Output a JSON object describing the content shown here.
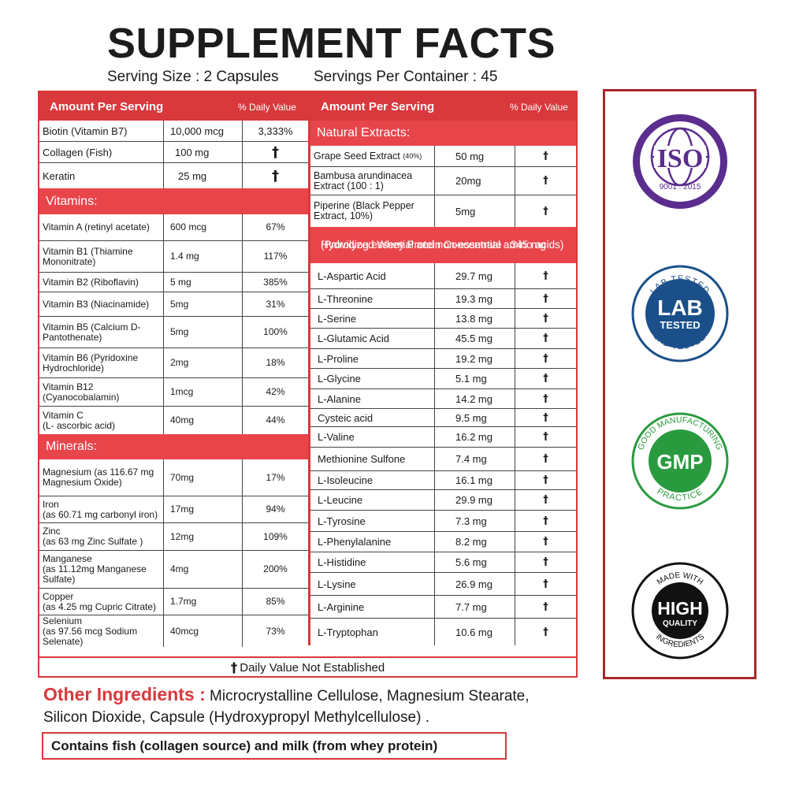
{
  "title": "SUPPLEMENT FACTS",
  "serving_size": "Serving Size : 2 Capsules",
  "servings_per_container": "Servings Per Container : 45",
  "header": {
    "amount": "Amount Per Serving",
    "dv": "% Daily Value"
  },
  "dagger": "†",
  "top_items": [
    {
      "name": "Biotin (Vitamin B7)",
      "amount": "10,000 mcg",
      "dv": "3,333%"
    },
    {
      "name": "Collagen (Fish)",
      "amount": "100 mg",
      "dv": "†"
    },
    {
      "name": "Keratin",
      "amount": "25 mg",
      "dv": "†"
    }
  ],
  "vitamins": {
    "label": "Vitamins:",
    "items": [
      {
        "name": "Vitamin A (retinyl acetate)",
        "amount": "600 mcg",
        "dv": "67%"
      },
      {
        "name": "Vitamin B1 (Thiamine",
        "name2": "Mononitrate)",
        "amount": "1.4 mg",
        "dv": "117%"
      },
      {
        "name": "Vitamin B2 (Riboflavin)",
        "amount": "5 mg",
        "dv": "385%"
      },
      {
        "name": "Vitamin B3 (Niacinamide)",
        "amount": "5mg",
        "dv": "31%"
      },
      {
        "name": "Vitamin B5 (Calcium D-",
        "name2": "Pantothenate)",
        "amount": "5mg",
        "dv": "100%"
      },
      {
        "name": "Vitamin B6 (Pyridoxine",
        "name2": "Hydrochloride)",
        "amount": "2mg",
        "dv": "18%"
      },
      {
        "name": "Vitamin B12",
        "name2": "(Cyanocobalamin)",
        "amount": "1mcg",
        "dv": "42%"
      },
      {
        "name": "Vitamin C",
        "name2": "(L- ascorbic acid)",
        "amount": "40mg",
        "dv": "44%"
      }
    ]
  },
  "minerals": {
    "label": "Minerals:",
    "items": [
      {
        "name": "Magnesium (as 116.67 mg",
        "name2": "Magnesium Oxide)",
        "amount": "70mg",
        "dv": "17%"
      },
      {
        "name": "Iron",
        "name2": "(as 60.71 mg carbonyl iron)",
        "amount": "17mg",
        "dv": "94%"
      },
      {
        "name": "Zinc",
        "name2": "(as 63 mg Zinc Sulfate )",
        "amount": "12mg",
        "dv": "109%"
      },
      {
        "name": "Manganese",
        "name2": "(as 11.12mg Manganese",
        "name3": "Sulfate)",
        "amount": "4mg",
        "dv": "200%"
      },
      {
        "name": "Copper",
        "name2": "(as 4.25 mg Cupric Citrate)",
        "amount": "1.7mg",
        "dv": "85%"
      },
      {
        "name": "Selenium",
        "name2": "(as 97.56 mcg Sodium",
        "name3": "Selenate)",
        "amount": "40mcg",
        "dv": "73%"
      }
    ]
  },
  "natural_extracts": {
    "label": "Natural Extracts:",
    "items": [
      {
        "name": "Grape Seed Extract",
        "note": "(40%)",
        "amount": "50 mg",
        "dv": "†"
      },
      {
        "name": "Bambusa arundinacea",
        "name2": "Extract  (100 : 1)",
        "amount": "20mg",
        "dv": "†"
      },
      {
        "name": "Piperine (Black Pepper",
        "name2": "Extract, 10%)",
        "amount": "5mg",
        "dv": "†"
      }
    ]
  },
  "whey": {
    "label": "Hydrolyzed Whey Protein Concentrate : 345 mg",
    "label2": "(Providing essential and non-essential amino acids)",
    "items": [
      {
        "name": "L-Aspartic Acid",
        "amount": "29.7 mg",
        "dv": "†"
      },
      {
        "name": "L-Threonine",
        "amount": "19.3 mg",
        "dv": "†"
      },
      {
        "name": "L-Serine",
        "amount": "13.8 mg",
        "dv": "†"
      },
      {
        "name": "L-Glutamic Acid",
        "amount": "45.5 mg",
        "dv": "†"
      },
      {
        "name": "L-Proline",
        "amount": "19.2 mg",
        "dv": "†"
      },
      {
        "name": "L-Glycine",
        "amount": "5.1 mg",
        "dv": "†"
      },
      {
        "name": "L-Alanine",
        "amount": "14.2 mg",
        "dv": "†"
      },
      {
        "name": "Cysteic acid",
        "amount": "9.5 mg",
        "dv": "†"
      },
      {
        "name": "L-Valine",
        "amount": "16.2 mg",
        "dv": "†"
      },
      {
        "name": "Methionine Sulfone",
        "amount": "7.4 mg",
        "dv": "†"
      },
      {
        "name": "L-Isoleucine",
        "amount": "16.1 mg",
        "dv": "†"
      },
      {
        "name": "L-Leucine",
        "amount": "29.9 mg",
        "dv": "†"
      },
      {
        "name": "L-Tyrosine",
        "amount": "7.3 mg",
        "dv": "†"
      },
      {
        "name": "L-Phenylalanine",
        "amount": "8.2 mg",
        "dv": "†"
      },
      {
        "name": "L-Histidine",
        "amount": "5.6 mg",
        "dv": "†"
      },
      {
        "name": "L-Lysine",
        "amount": "26.9 mg",
        "dv": "†"
      },
      {
        "name": "L-Arginine",
        "amount": "7.7 mg",
        "dv": "†"
      },
      {
        "name": "L-Tryptophan",
        "amount": "10.6 mg",
        "dv": "†"
      }
    ]
  },
  "footnote": "Daily Value Not Established",
  "other_ingredients": {
    "label": "Other Ingredients :",
    "text": "Microcrystalline Cellulose, Magnesium Stearate, Silicon Dioxide, Capsule (Hydroxypropyl Methylcellulose) ."
  },
  "allergen": "Contains fish (collagen source) and milk (from whey protein)",
  "badges": {
    "iso": {
      "main": "ISO",
      "sub": "9001 : 2015",
      "color": "#5b2d8e"
    },
    "lab": {
      "line1": "LAB",
      "line2": "TESTED",
      "ring_top": "LAB TESTED",
      "ring_bottom": "LAB TESTED",
      "color": "#1a4f8a"
    },
    "gmp": {
      "main": "GMP",
      "ring_top": "GOOD MANUFACTURING",
      "ring_bottom": "PRACTICE",
      "color": "#2a9a3f"
    },
    "hq": {
      "line1": "HIGH",
      "line2": "QUALITY",
      "ring_top": "MADE WITH",
      "ring_bottom": "INGREDIENTS",
      "color": "#111111"
    }
  },
  "colors": {
    "accent": "#d9383c",
    "section": "#e8454b",
    "frame": "#a8282b"
  }
}
